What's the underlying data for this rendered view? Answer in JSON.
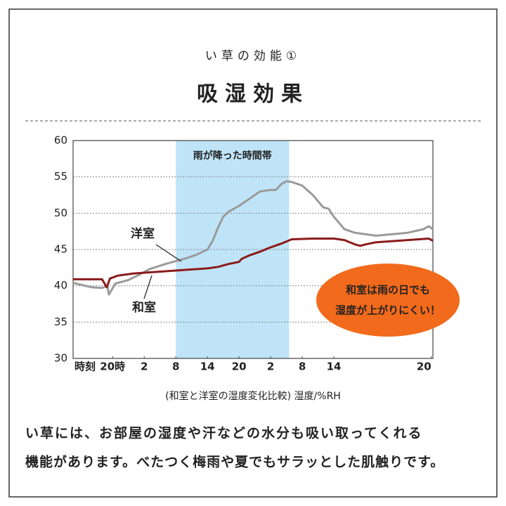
{
  "chart_data": {
    "type": "line",
    "subtitle": "い草の効能①",
    "title": "吸湿効果",
    "xlabel": "時刻",
    "caption": "(和室と洋室の湿度変化比較) 湿度/%RH",
    "band": {
      "label": "雨が降った時間帯",
      "x": [
        12,
        33.5
      ],
      "color": "#bfe4f8"
    },
    "note": [
      "和室は雨の日でも",
      "湿度が上がりにくい！"
    ],
    "note_color": "#f26a1b",
    "xlim": [
      -7.5,
      60.8
    ],
    "xticks": [
      {
        "value": 0,
        "label": "20時"
      },
      {
        "value": 6,
        "label": "2"
      },
      {
        "value": 12,
        "label": "8"
      },
      {
        "value": 18,
        "label": "14"
      },
      {
        "value": 24,
        "label": "20"
      },
      {
        "value": 30,
        "label": "2"
      },
      {
        "value": 36,
        "label": "8"
      },
      {
        "value": 42,
        "label": "14"
      },
      {
        "value": 60.5,
        "label": "20"
      }
    ],
    "ylim": [
      30,
      60
    ],
    "yticks": [
      30,
      35,
      40,
      45,
      50,
      55,
      60
    ],
    "grid": true,
    "series": [
      {
        "name": "洋室",
        "color": "#9a9a9a",
        "x": [
          -7.5,
          -4,
          -2,
          -1,
          -0.7,
          0.5,
          3,
          5,
          7,
          10,
          14,
          16,
          18,
          19,
          20,
          21,
          22,
          24,
          26,
          28,
          30,
          31,
          32,
          33,
          34,
          36,
          38,
          40,
          41,
          42,
          44,
          46,
          50,
          56,
          59,
          60,
          60.8
        ],
        "values": [
          40.4,
          39.8,
          39.7,
          40,
          38.8,
          40.3,
          40.8,
          41.5,
          42.3,
          43,
          43.8,
          44.3,
          45,
          46.2,
          48,
          49.5,
          50.2,
          51,
          52,
          53,
          53.2,
          53.2,
          54,
          54.4,
          54.3,
          53.8,
          52.5,
          50.8,
          50.6,
          49.5,
          47.8,
          47.3,
          46.9,
          47.3,
          47.8,
          48.2,
          47.8
        ]
      },
      {
        "name": "和室",
        "color": "#8b1a1a",
        "x": [
          -7.5,
          -2,
          -1.1,
          -0.5,
          1,
          4,
          10,
          14,
          18,
          20,
          22,
          24,
          24.5,
          26,
          28,
          30,
          32,
          34,
          38,
          42,
          44,
          46,
          47,
          48,
          50,
          56,
          60,
          60.8
        ],
        "values": [
          40.9,
          40.9,
          39.8,
          41,
          41.4,
          41.7,
          42,
          42.2,
          42.4,
          42.6,
          43,
          43.3,
          43.7,
          44.2,
          44.7,
          45.3,
          45.8,
          46.4,
          46.5,
          46.5,
          46.3,
          45.7,
          45.5,
          45.7,
          46,
          46.3,
          46.5,
          46.2
        ]
      }
    ]
  },
  "body": [
    "い草には、お部屋の湿度や汗などの水分も吸い取ってくれる",
    "機能があります。べたつく梅雨や夏でもサラッとした肌触りです。"
  ]
}
